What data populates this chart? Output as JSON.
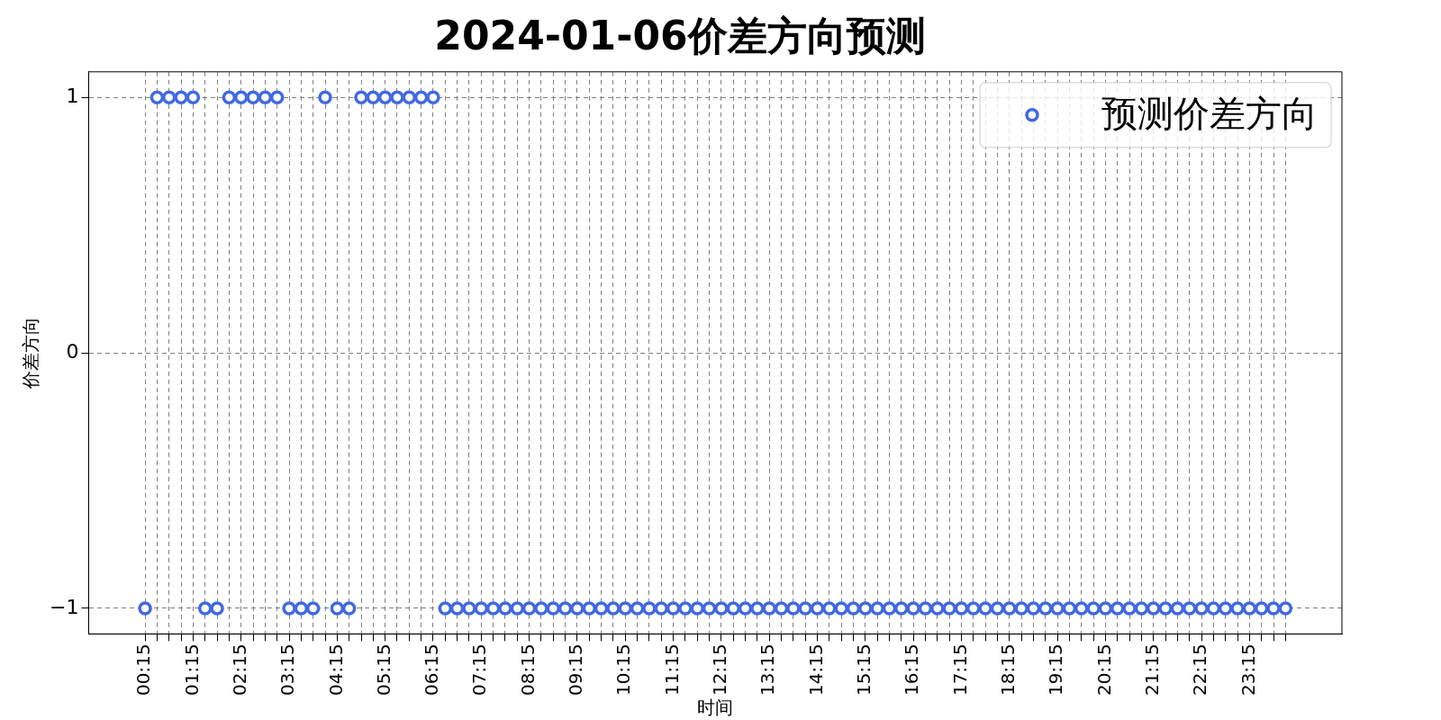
{
  "chart_data": {
    "type": "scatter",
    "title": "2024-01-06价差方向预测",
    "xlabel": "时间",
    "ylabel": "价差方向",
    "categories": [
      "00:15",
      null,
      null,
      null,
      "01:15",
      null,
      null,
      null,
      "02:15",
      null,
      null,
      null,
      "03:15",
      null,
      null,
      null,
      "04:15",
      null,
      null,
      null,
      "05:15",
      null,
      null,
      null,
      "06:15",
      null,
      null,
      null,
      "07:15",
      null,
      null,
      null,
      "08:15",
      null,
      null,
      null,
      "09:15",
      null,
      null,
      null,
      "10:15",
      null,
      null,
      null,
      "11:15",
      null,
      null,
      null,
      "12:15",
      null,
      null,
      null,
      "13:15",
      null,
      null,
      null,
      "14:15",
      null,
      null,
      null,
      "15:15",
      null,
      null,
      null,
      "16:15",
      null,
      null,
      null,
      "17:15",
      null,
      null,
      null,
      "18:15",
      null,
      null,
      null,
      "19:15",
      null,
      null,
      null,
      "20:15",
      null,
      null,
      null,
      "21:15",
      null,
      null,
      null,
      "22:15",
      null,
      null,
      null,
      "23:15",
      null,
      null,
      null
    ],
    "series": [
      {
        "name": "预测价差方向",
        "color": "#4169e1",
        "values": [
          -1,
          1,
          1,
          1,
          1,
          -1,
          -1,
          1,
          1,
          1,
          1,
          1,
          -1,
          -1,
          -1,
          1,
          -1,
          -1,
          1,
          1,
          1,
          1,
          1,
          1,
          1,
          -1,
          -1,
          -1,
          -1,
          -1,
          -1,
          -1,
          -1,
          -1,
          -1,
          -1,
          -1,
          -1,
          -1,
          -1,
          -1,
          -1,
          -1,
          -1,
          -1,
          -1,
          -1,
          -1,
          -1,
          -1,
          -1,
          -1,
          -1,
          -1,
          -1,
          -1,
          -1,
          -1,
          -1,
          -1,
          -1,
          -1,
          -1,
          -1,
          -1,
          -1,
          -1,
          -1,
          -1,
          -1,
          -1,
          -1,
          -1,
          -1,
          -1,
          -1,
          -1,
          -1,
          -1,
          -1,
          -1,
          -1,
          -1,
          -1,
          -1,
          -1,
          -1,
          -1,
          -1,
          -1,
          -1,
          -1,
          -1,
          -1,
          -1,
          -1
        ]
      }
    ],
    "ylim": [
      -1.1,
      1.1
    ],
    "yticks": [
      -1,
      0,
      1
    ],
    "grid": true,
    "legend": "top right",
    "marker": "circle"
  }
}
